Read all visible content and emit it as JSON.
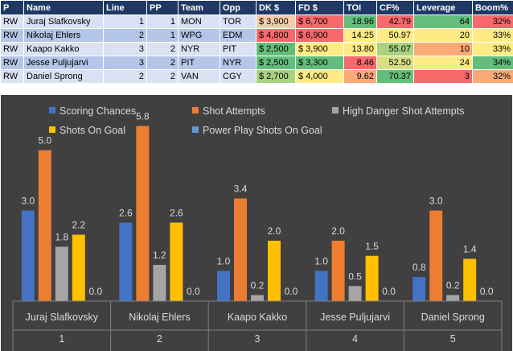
{
  "table": {
    "headers": [
      "P",
      "Name",
      "Line",
      "PP",
      "Team",
      "Opp",
      "DK $",
      "FD $",
      "TOI",
      "CF%",
      "Leverage",
      "Boom%"
    ],
    "rows": [
      {
        "p": "RW",
        "name": "Juraj Slafkovsky",
        "line": "1",
        "pp": "1",
        "team": "MON",
        "opp": "TOR",
        "dk": "$ 3,900",
        "fd": "$ 6,700",
        "toi": "18.96",
        "cf": "42.79",
        "leverage": "64",
        "boom": "32%",
        "dk_color": "#f8cbad",
        "fd_color": "#f8696b",
        "toi_color": "#63be7b",
        "cf_color": "#f8696b",
        "lev_color": "#63be7b",
        "boom_color": "#f8696b"
      },
      {
        "p": "RW",
        "name": "Nikolaj Ehlers",
        "line": "2",
        "pp": "1",
        "team": "WPG",
        "opp": "EDM",
        "dk": "$ 4,800",
        "fd": "$ 6,900",
        "toi": "14.25",
        "cf": "50.97",
        "leverage": "20",
        "boom": "33%",
        "dk_color": "#f8696b",
        "fd_color": "#f8696b",
        "toi_color": "#ffeb84",
        "cf_color": "#ffeb84",
        "lev_color": "#ffeb84",
        "boom_color": "#ffeb84"
      },
      {
        "p": "RW",
        "name": "Kaapo Kakko",
        "line": "3",
        "pp": "2",
        "team": "NYR",
        "opp": "PIT",
        "dk": "$ 2,500",
        "fd": "$ 3,900",
        "toi": "13.80",
        "cf": "55.07",
        "leverage": "10",
        "boom": "33%",
        "dk_color": "#63be7b",
        "fd_color": "#ffeb84",
        "toi_color": "#ffeb84",
        "cf_color": "#a9d27f",
        "lev_color": "#fbaa77",
        "boom_color": "#ffeb84"
      },
      {
        "p": "RW",
        "name": "Jesse Puljujarvi",
        "line": "3",
        "pp": "2",
        "team": "PIT",
        "opp": "NYR",
        "dk": "$ 2,500",
        "fd": "$ 3,300",
        "toi": "8.46",
        "cf": "52.50",
        "leverage": "24",
        "boom": "34%",
        "dk_color": "#63be7b",
        "fd_color": "#63be7b",
        "toi_color": "#f8696b",
        "cf_color": "#d9e082",
        "lev_color": "#ffeb84",
        "boom_color": "#63be7b"
      },
      {
        "p": "RW",
        "name": "Daniel Sprong",
        "line": "2",
        "pp": "2",
        "team": "VAN",
        "opp": "CGY",
        "dk": "$ 2,700",
        "fd": "$ 4,000",
        "toi": "9.62",
        "cf": "70.37",
        "leverage": "3",
        "boom": "32%",
        "dk_color": "#a9d27f",
        "fd_color": "#ffeb84",
        "toi_color": "#fbaa77",
        "cf_color": "#63be7b",
        "lev_color": "#f8696b",
        "boom_color": "#fbaa77"
      }
    ]
  },
  "chart_data": {
    "type": "bar",
    "categories": [
      {
        "name": "Juraj Slafkovsky",
        "line": "1"
      },
      {
        "name": "Nikolaj Ehlers",
        "line": "2"
      },
      {
        "name": "Kaapo Kakko",
        "line": "3"
      },
      {
        "name": "Jesse Puljujarvi",
        "line": "4"
      },
      {
        "name": "Daniel Sprong",
        "line": "5"
      }
    ],
    "series": [
      {
        "name": "Scoring Chances",
        "color": "#4472c4",
        "values": [
          3.0,
          2.6,
          1.0,
          1.0,
          0.8
        ]
      },
      {
        "name": "Shot Attempts",
        "color": "#ed7d31",
        "values": [
          5.0,
          5.8,
          3.4,
          2.0,
          3.0
        ]
      },
      {
        "name": "High Danger Shot Attempts",
        "color": "#a5a5a5",
        "values": [
          1.8,
          1.2,
          0.2,
          0.5,
          0.2
        ]
      },
      {
        "name": "Shots On Goal",
        "color": "#ffc000",
        "values": [
          2.2,
          2.6,
          2.0,
          1.5,
          1.4
        ]
      },
      {
        "name": "Power Play Shots On Goal",
        "color": "#5b9bd5",
        "values": [
          0.0,
          0.0,
          0.0,
          0.0,
          0.0
        ]
      }
    ],
    "ylim": [
      0,
      6.5
    ],
    "grid": false,
    "legend_position": "top",
    "background": "#404040",
    "text_color": "#d9d9d9"
  }
}
